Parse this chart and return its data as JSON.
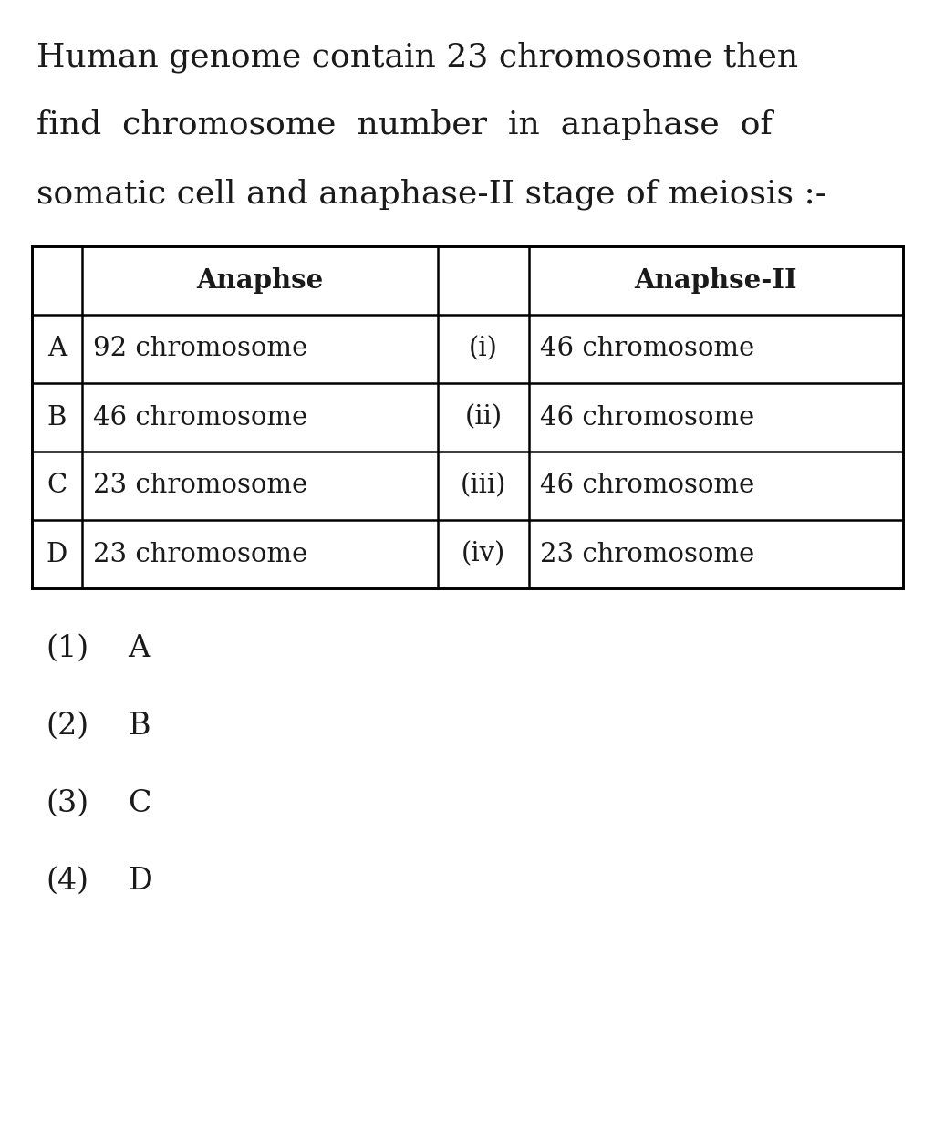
{
  "title_lines": [
    "Human genome contain 23 chromosome then",
    "find  chromosome  number  in  anaphase  of",
    "somatic cell and anaphase-II stage of meiosis :-"
  ],
  "table_headers_col1": "Anaphse",
  "table_headers_col3": "Anaphse-II",
  "table_rows": [
    [
      "A",
      "92 chromosome",
      "(i)",
      "46 chromosome"
    ],
    [
      "B",
      "46 chromosome",
      "(ii)",
      "46 chromosome"
    ],
    [
      "C",
      "23 chromosome",
      "(iii)",
      "46 chromosome"
    ],
    [
      "D",
      "23 chromosome",
      "(iv)",
      "23 chromosome"
    ]
  ],
  "options": [
    [
      "(1)",
      "A"
    ],
    [
      "(2)",
      "B"
    ],
    [
      "(3)",
      "C"
    ],
    [
      "(4)",
      "D"
    ]
  ],
  "bg_color": "#ffffff",
  "text_color": "#1a1a1a",
  "font_size_title": 26,
  "font_size_table": 21,
  "font_size_options": 24
}
